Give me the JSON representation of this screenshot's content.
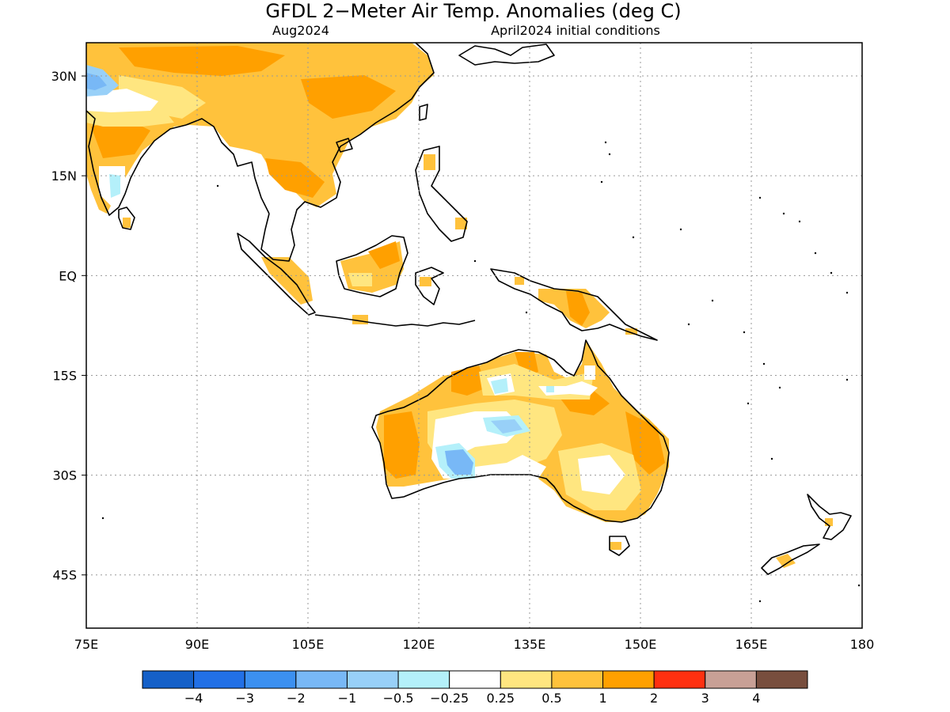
{
  "title": "GFDL 2−Meter Air Temp. Anomalies (deg C)",
  "subtitle_left": "Aug2024",
  "subtitle_right": "April2024 initial conditions",
  "map": {
    "lon_range": [
      75,
      180
    ],
    "lat_range": [
      -53,
      35
    ],
    "lon_ticks": [
      "75E",
      "90E",
      "105E",
      "120E",
      "135E",
      "150E",
      "165E",
      "180"
    ],
    "lat_ticks": [
      "30N",
      "15N",
      "EQ",
      "15S",
      "30S",
      "45S"
    ],
    "grid": true
  },
  "legend": {
    "colors": [
      "#1560c8",
      "#2270e6",
      "#3c90f0",
      "#78b8f6",
      "#98d0f8",
      "#b4f0fa",
      "#ffffff",
      "#ffe680",
      "#ffc23c",
      "#ffa000",
      "#ff3010",
      "#c8a096",
      "#784e3e"
    ],
    "labels": [
      "−4",
      "−3",
      "−2",
      "−1",
      "−0.5",
      "−0.25",
      "0.25",
      "0.5",
      "1",
      "2",
      "3",
      "4"
    ]
  }
}
